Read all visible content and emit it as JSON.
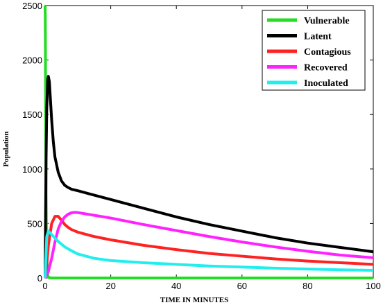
{
  "chart_data": {
    "type": "line",
    "title": "",
    "xlabel": "TIME IN MINUTES",
    "ylabel": "Population",
    "xlim": [
      0,
      100
    ],
    "ylim": [
      0,
      2500
    ],
    "xticks": [
      0,
      20,
      40,
      60,
      80,
      100
    ],
    "yticks": [
      0,
      500,
      1000,
      1500,
      2000,
      2500
    ],
    "legend_position": "top-right",
    "series": [
      {
        "name": "Vulnerable",
        "color": "#22dd22",
        "x": [
          0,
          0.05,
          0.1,
          0.15,
          0.2,
          0.3,
          0.4,
          0.5,
          0.6,
          0.7,
          0.8,
          1.0,
          2,
          5,
          10,
          20,
          40,
          60,
          80,
          100
        ],
        "y": [
          2500,
          2400,
          2100,
          1700,
          1300,
          800,
          450,
          250,
          120,
          60,
          25,
          5,
          0,
          0,
          0,
          0,
          0,
          0,
          0,
          0
        ]
      },
      {
        "name": "Latent",
        "color": "#000000",
        "x": [
          0,
          0.3,
          0.5,
          0.8,
          1.0,
          1.3,
          1.6,
          2,
          2.5,
          3,
          4,
          5,
          6,
          7,
          8,
          10,
          15,
          20,
          30,
          40,
          50,
          60,
          70,
          80,
          90,
          100
        ],
        "y": [
          0,
          1100,
          1550,
          1820,
          1850,
          1800,
          1650,
          1450,
          1250,
          1110,
          970,
          890,
          850,
          830,
          815,
          800,
          760,
          720,
          640,
          560,
          490,
          430,
          370,
          320,
          280,
          240
        ]
      },
      {
        "name": "Contagious",
        "color": "#ff2222",
        "x": [
          0,
          0.5,
          1,
          2,
          3,
          4,
          5,
          6,
          7,
          8,
          10,
          15,
          20,
          30,
          40,
          50,
          60,
          70,
          80,
          90,
          100
        ],
        "y": [
          0,
          120,
          300,
          500,
          565,
          565,
          530,
          490,
          465,
          445,
          420,
          380,
          350,
          300,
          260,
          225,
          200,
          175,
          155,
          140,
          125
        ]
      },
      {
        "name": "Recovered",
        "color": "#ff22ff",
        "x": [
          0,
          1,
          2,
          3,
          4,
          5,
          6,
          7,
          8,
          9,
          10,
          12,
          15,
          20,
          30,
          40,
          50,
          60,
          70,
          80,
          90,
          100
        ],
        "y": [
          0,
          60,
          180,
          330,
          450,
          520,
          560,
          585,
          598,
          602,
          600,
          590,
          575,
          550,
          490,
          435,
          380,
          330,
          285,
          245,
          210,
          185
        ]
      },
      {
        "name": "Inoculated",
        "color": "#22eeee",
        "x": [
          0,
          0.5,
          1,
          2,
          3,
          4,
          5,
          6,
          8,
          10,
          15,
          20,
          30,
          40,
          50,
          60,
          70,
          80,
          90,
          100
        ],
        "y": [
          0,
          380,
          430,
          400,
          365,
          335,
          310,
          285,
          250,
          220,
          180,
          160,
          140,
          125,
          110,
          100,
          90,
          82,
          75,
          70
        ]
      }
    ]
  }
}
